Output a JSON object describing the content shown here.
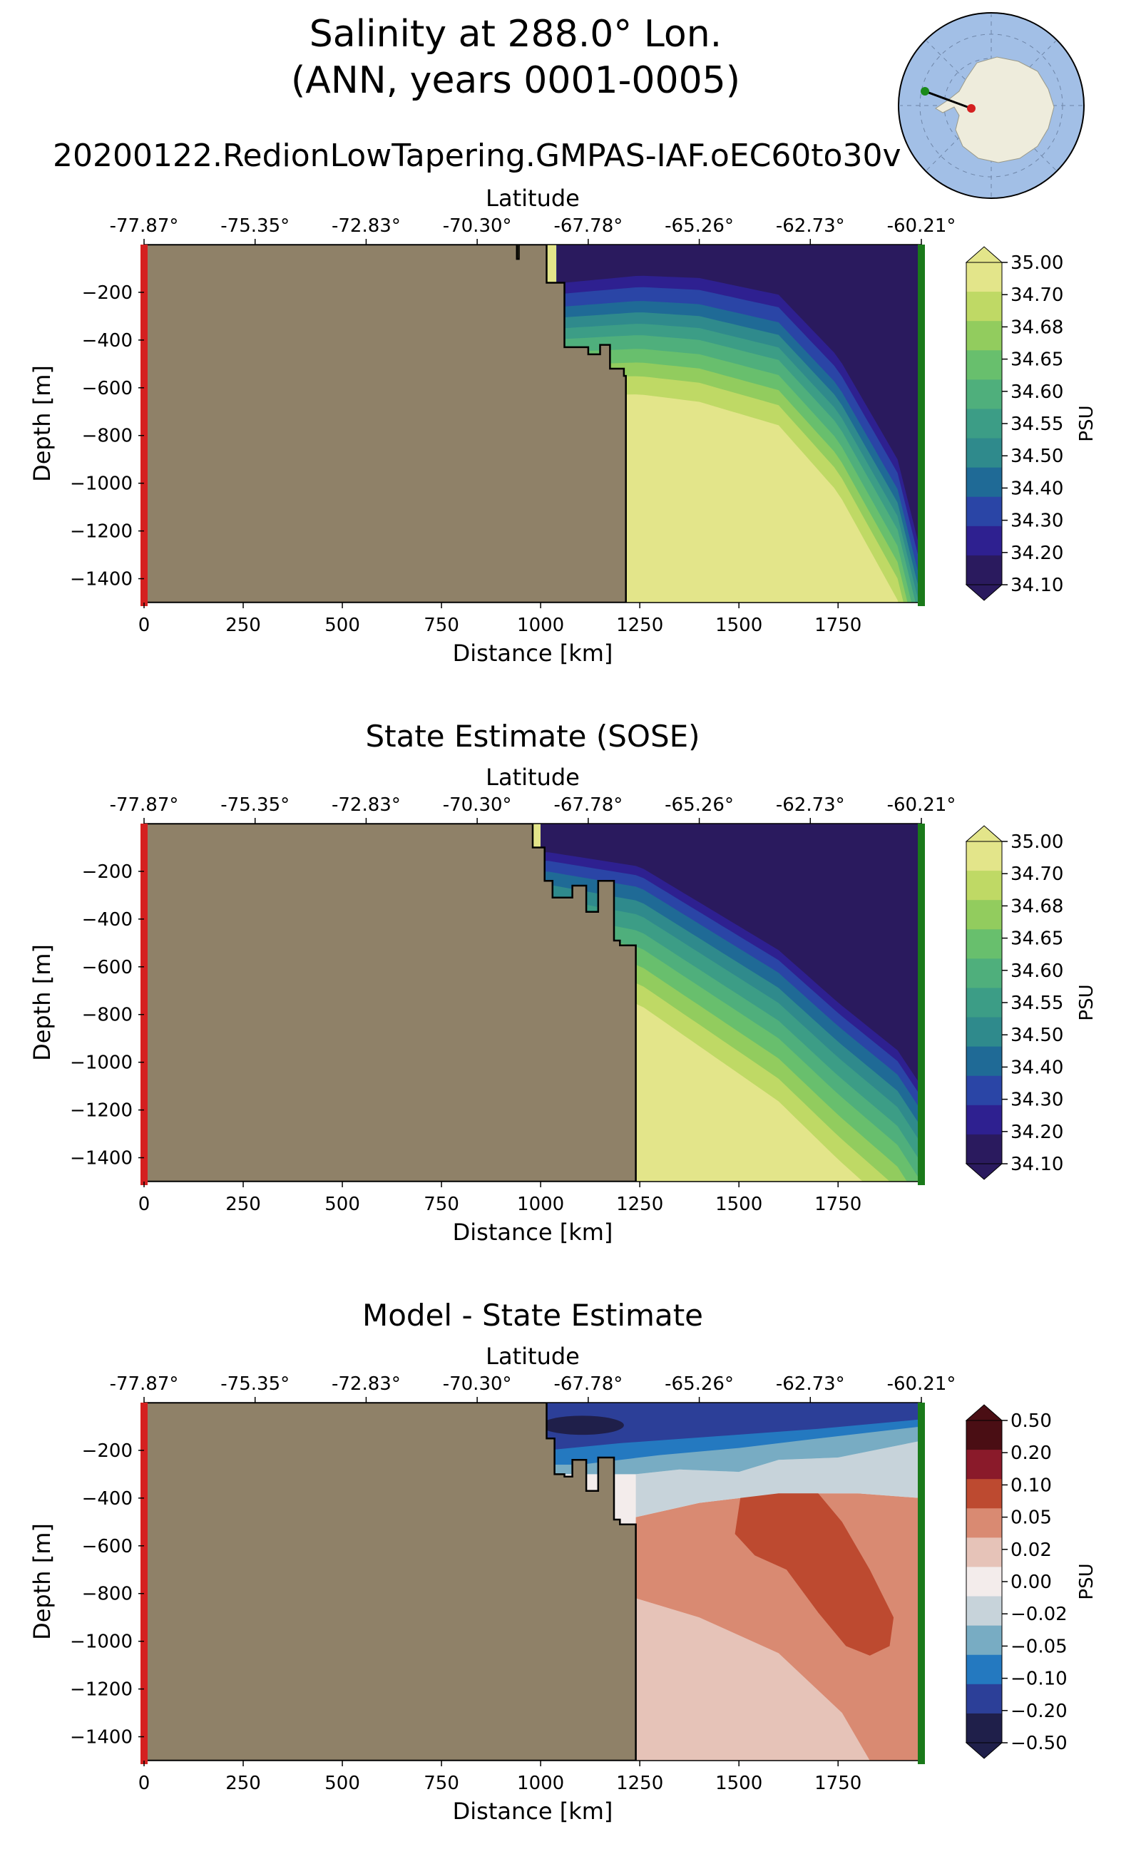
{
  "figure": {
    "title_line1": "Salinity at 288.0° Lon.",
    "title_line2": "(ANN, years 0001-0005)",
    "run_name": "20200122.RedionLowTapering.GMPAS-IAF.oEC60to30v"
  },
  "colors": {
    "land": "#8f8168",
    "start_marker": "#d42020",
    "end_marker": "#1a7a1a",
    "salinity_colormap": [
      "#2a1a5e",
      "#2e2090",
      "#2a45a6",
      "#1f6a96",
      "#2f8a8c",
      "#3c9d86",
      "#4faf7c",
      "#68bf6d",
      "#92cc5e",
      "#bfd965",
      "#e3e58a"
    ],
    "difference_colormap": [
      "#1f1f4a",
      "#2c3f98",
      "#2479c0",
      "#78acc3",
      "#c7d3da",
      "#f3eceb",
      "#e6c3b8",
      "#d98a72",
      "#bd4a30",
      "#8a1a2a",
      "#4a0e14"
    ]
  },
  "inset_map": {
    "description_label": "",
    "path_start_color": "#1a8a1a",
    "path_end_color": "#d42020"
  },
  "chart_data": [
    {
      "type": "heatmap",
      "title": "",
      "top_axis_label": "Latitude",
      "xlabel": "Distance [km]",
      "ylabel": "Depth [m]",
      "xlim": [
        0,
        1960
      ],
      "ylim": [
        -1500,
        0
      ],
      "x_ticks": [
        0,
        250,
        500,
        750,
        1000,
        1250,
        1500,
        1750
      ],
      "x_tick_labels": [
        "0",
        "250",
        "500",
        "750",
        "1000",
        "1250",
        "1500",
        "1750"
      ],
      "y_ticks": [
        -200,
        -400,
        -600,
        -800,
        -1000,
        -1200,
        -1400
      ],
      "y_tick_labels": [
        "−200",
        "−400",
        "−600",
        "−800",
        "−1000",
        "−1200",
        "−1400"
      ],
      "lat_tick_labels": [
        "-77.87°",
        "-75.35°",
        "-72.83°",
        "-70.30°",
        "-67.78°",
        "-65.26°",
        "-62.73°",
        "-60.21°"
      ],
      "colorbar_label": "PSU",
      "colorbar_ticks": [
        "35.00",
        "34.70",
        "34.68",
        "34.65",
        "34.60",
        "34.55",
        "34.50",
        "34.40",
        "34.30",
        "34.20",
        "34.10"
      ],
      "colormap": "salinity",
      "bathymetry": [
        [
          0,
          -1500
        ],
        [
          0,
          0
        ],
        [
          940,
          0
        ],
        [
          940,
          -60
        ],
        [
          945,
          -60
        ],
        [
          945,
          0
        ],
        [
          1015,
          0
        ],
        [
          1015,
          -160
        ],
        [
          1060,
          -160
        ],
        [
          1060,
          -430
        ],
        [
          1120,
          -430
        ],
        [
          1120,
          -460
        ],
        [
          1150,
          -460
        ],
        [
          1150,
          -420
        ],
        [
          1175,
          -420
        ],
        [
          1175,
          -520
        ],
        [
          1210,
          -520
        ],
        [
          1210,
          -550
        ],
        [
          1215,
          -550
        ],
        [
          1215,
          -1500
        ]
      ],
      "salinity_contours": {
        "surface_offset": [
          -160,
          -130,
          -140,
          -210,
          -470,
          -900,
          -1300
        ],
        "offset_x": [
          1060,
          1250,
          1400,
          1600,
          1750,
          1900,
          1960
        ],
        "band_depths": [
          0,
          50,
          110,
          160,
          210,
          260,
          320,
          380,
          440,
          520
        ]
      }
    },
    {
      "type": "heatmap",
      "title": "State Estimate (SOSE)",
      "top_axis_label": "Latitude",
      "xlabel": "Distance [km]",
      "ylabel": "Depth [m]",
      "xlim": [
        0,
        1960
      ],
      "ylim": [
        -1500,
        0
      ],
      "x_ticks": [
        0,
        250,
        500,
        750,
        1000,
        1250,
        1500,
        1750
      ],
      "x_tick_labels": [
        "0",
        "250",
        "500",
        "750",
        "1000",
        "1250",
        "1500",
        "1750"
      ],
      "y_ticks": [
        -200,
        -400,
        -600,
        -800,
        -1000,
        -1200,
        -1400
      ],
      "y_tick_labels": [
        "−200",
        "−400",
        "−600",
        "−800",
        "−1000",
        "−1200",
        "−1400"
      ],
      "lat_tick_labels": [
        "-77.87°",
        "-75.35°",
        "-72.83°",
        "-70.30°",
        "-67.78°",
        "-65.26°",
        "-62.73°",
        "-60.21°"
      ],
      "colorbar_label": "PSU",
      "colorbar_ticks": [
        "35.00",
        "34.70",
        "34.68",
        "34.65",
        "34.60",
        "34.55",
        "34.50",
        "34.40",
        "34.30",
        "34.20",
        "34.10"
      ],
      "colormap": "salinity",
      "bathymetry": [
        [
          0,
          -1500
        ],
        [
          0,
          0
        ],
        [
          980,
          0
        ],
        [
          980,
          -100
        ],
        [
          1010,
          -100
        ],
        [
          1010,
          -240
        ],
        [
          1030,
          -240
        ],
        [
          1030,
          -310
        ],
        [
          1080,
          -310
        ],
        [
          1080,
          -260
        ],
        [
          1115,
          -260
        ],
        [
          1115,
          -370
        ],
        [
          1145,
          -370
        ],
        [
          1145,
          -240
        ],
        [
          1185,
          -240
        ],
        [
          1185,
          -490
        ],
        [
          1200,
          -490
        ],
        [
          1200,
          -510
        ],
        [
          1240,
          -510
        ],
        [
          1240,
          -1500
        ]
      ],
      "salinity_contours": {
        "surface_offset": [
          -120,
          -180,
          -330,
          -530,
          -750,
          -950,
          -1100
        ],
        "offset_x": [
          1020,
          1250,
          1400,
          1600,
          1750,
          1900,
          1960
        ],
        "band_depths": [
          0,
          40,
          90,
          150,
          210,
          280,
          350,
          430,
          510,
          600
        ]
      }
    },
    {
      "type": "heatmap",
      "title": "Model - State Estimate",
      "top_axis_label": "Latitude",
      "xlabel": "Distance [km]",
      "ylabel": "Depth [m]",
      "xlim": [
        0,
        1960
      ],
      "ylim": [
        -1500,
        0
      ],
      "x_ticks": [
        0,
        250,
        500,
        750,
        1000,
        1250,
        1500,
        1750
      ],
      "x_tick_labels": [
        "0",
        "250",
        "500",
        "750",
        "1000",
        "1250",
        "1500",
        "1750"
      ],
      "y_ticks": [
        -200,
        -400,
        -600,
        -800,
        -1000,
        -1200,
        -1400
      ],
      "y_tick_labels": [
        "−200",
        "−400",
        "−600",
        "−800",
        "−1000",
        "−1200",
        "−1400"
      ],
      "lat_tick_labels": [
        "-77.87°",
        "-75.35°",
        "-72.83°",
        "-70.30°",
        "-67.78°",
        "-65.26°",
        "-62.73°",
        "-60.21°"
      ],
      "colorbar_label": "PSU",
      "colorbar_ticks": [
        "0.50",
        "0.20",
        "0.10",
        "0.05",
        "0.02",
        "0.00",
        "−0.02",
        "−0.05",
        "−0.10",
        "−0.20",
        "−0.50"
      ],
      "colormap": "difference",
      "bathymetry": [
        [
          0,
          -1500
        ],
        [
          0,
          0
        ],
        [
          1015,
          0
        ],
        [
          1015,
          -150
        ],
        [
          1035,
          -150
        ],
        [
          1035,
          -300
        ],
        [
          1060,
          -300
        ],
        [
          1060,
          -310
        ],
        [
          1080,
          -310
        ],
        [
          1080,
          -240
        ],
        [
          1115,
          -240
        ],
        [
          1115,
          -370
        ],
        [
          1145,
          -370
        ],
        [
          1145,
          -230
        ],
        [
          1185,
          -230
        ],
        [
          1185,
          -490
        ],
        [
          1200,
          -490
        ],
        [
          1200,
          -510
        ],
        [
          1240,
          -510
        ],
        [
          1240,
          -1500
        ]
      ]
    }
  ]
}
